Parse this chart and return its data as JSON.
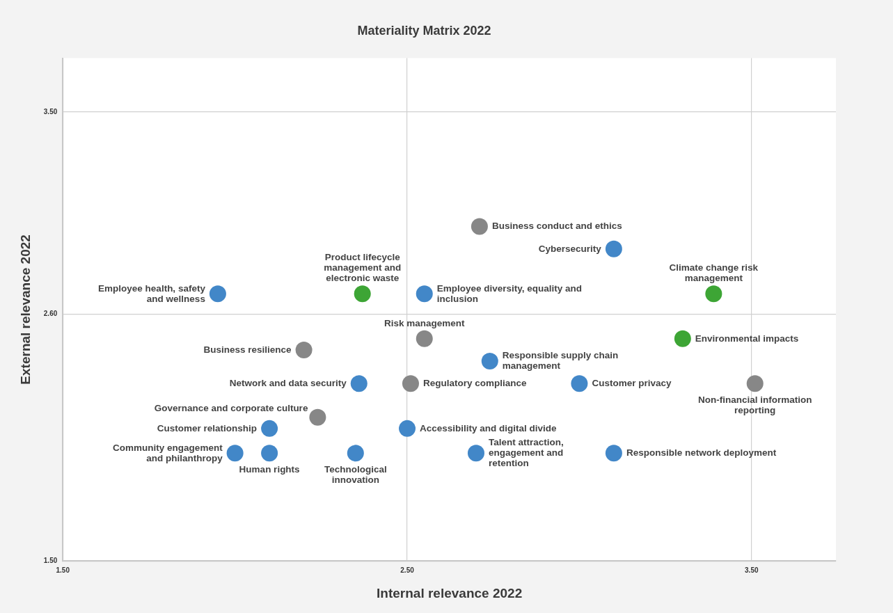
{
  "chart_data": {
    "type": "scatter",
    "title": "Materiality Matrix 2022",
    "xlabel": "Internal relevance 2022",
    "ylabel": "External relevance 2022",
    "x": [
      2.71,
      3.1,
      3.39,
      1.95,
      2.37,
      2.55,
      2.55,
      3.3,
      2.2,
      2.74,
      2.36,
      2.51,
      3.0,
      3.51,
      2.24,
      2.1,
      2.5,
      2.0,
      2.1,
      2.35,
      2.7,
      3.1
    ],
    "values": [
      2.99,
      2.89,
      2.69,
      2.69,
      2.69,
      2.69,
      2.49,
      2.49,
      2.44,
      2.39,
      2.29,
      2.29,
      2.29,
      2.29,
      2.14,
      2.09,
      2.09,
      1.98,
      1.98,
      1.98,
      1.98,
      1.98
    ],
    "colors": [
      "#878787",
      "#4287c8",
      "#3da535",
      "#4287c8",
      "#3da535",
      "#4287c8",
      "#878787",
      "#3da535",
      "#878787",
      "#4287c8",
      "#4287c8",
      "#878787",
      "#4287c8",
      "#878787",
      "#878787",
      "#4287c8",
      "#4287c8",
      "#4287c8",
      "#4287c8",
      "#4287c8",
      "#4287c8",
      "#4287c8"
    ],
    "annotations": [
      {
        "text": "Business conduct and ethics",
        "x": 2.71,
        "y": 2.99
      },
      {
        "text": "Cybersecurity",
        "x": 3.1,
        "y": 2.89
      },
      {
        "text": "Climate change risk management",
        "x": 3.39,
        "y": 2.69
      },
      {
        "text": "Employee health, safety and wellness",
        "x": 1.95,
        "y": 2.69
      },
      {
        "text": "Product lifecycle management and electronic waste",
        "x": 2.37,
        "y": 2.69
      },
      {
        "text": "Employee diversity, equality and inclusion",
        "x": 2.55,
        "y": 2.69
      },
      {
        "text": "Risk management",
        "x": 2.55,
        "y": 2.49
      },
      {
        "text": "Environmental impacts",
        "x": 3.3,
        "y": 2.49
      },
      {
        "text": "Business resilience",
        "x": 2.2,
        "y": 2.44
      },
      {
        "text": "Responsible supply chain management",
        "x": 2.74,
        "y": 2.39
      },
      {
        "text": "Network and data security",
        "x": 2.36,
        "y": 2.29
      },
      {
        "text": "Regulatory compliance",
        "x": 2.51,
        "y": 2.29
      },
      {
        "text": "Customer privacy",
        "x": 3.0,
        "y": 2.29
      },
      {
        "text": "Non-financial information reporting",
        "x": 3.51,
        "y": 2.29
      },
      {
        "text": "Governance and corporate culture",
        "x": 2.24,
        "y": 2.14
      },
      {
        "text": "Customer relationship",
        "x": 2.1,
        "y": 2.09
      },
      {
        "text": "Accessibility and digital divide",
        "x": 2.5,
        "y": 2.09
      },
      {
        "text": "Community engagement and philanthropy",
        "x": 2.0,
        "y": 1.98
      },
      {
        "text": "Human rights",
        "x": 2.1,
        "y": 1.98
      },
      {
        "text": "Technological innovation",
        "x": 2.35,
        "y": 1.98
      },
      {
        "text": "Talent attraction, engagement and retention",
        "x": 2.7,
        "y": 1.98
      },
      {
        "text": "Responsible network deployment",
        "x": 3.1,
        "y": 1.98
      }
    ],
    "xlim": [
      1.5,
      3.745
    ],
    "ylim": [
      1.5,
      3.74
    ],
    "xticks": [
      {
        "value": 1.5,
        "label": "1.50"
      },
      {
        "value": 2.5,
        "label": "2.50"
      },
      {
        "value": 3.5,
        "label": "3.50"
      }
    ],
    "yticks": [
      {
        "value": 1.5,
        "label": "1.50"
      },
      {
        "value": 2.6,
        "label": "2.60"
      },
      {
        "value": 3.5,
        "label": "3.50"
      }
    ],
    "grid": true,
    "marker": "circle"
  }
}
